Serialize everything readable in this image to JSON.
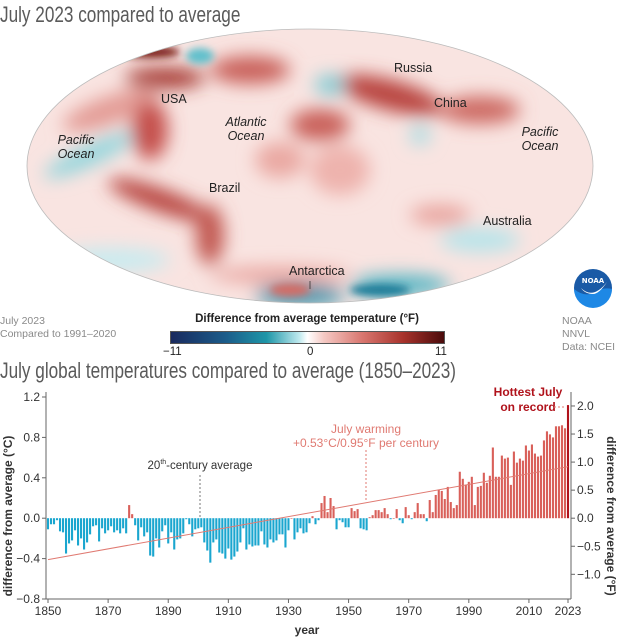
{
  "map": {
    "title": "July 2023 compared to average",
    "labels": {
      "usa": "USA",
      "russia": "Russia",
      "china": "China",
      "atlantic": "Atlantic Ocean",
      "pacific_left": "Pacific Ocean",
      "pacific_right": "Pacific Ocean",
      "brazil": "Brazil",
      "australia": "Australia",
      "antarctica": "Antarctica"
    },
    "note_line1": "July 2023",
    "note_line2": "Compared to 1991–2020",
    "credit_line1": "NOAA NNVL",
    "credit_line2": "Data: NCEI",
    "logo_text": "NOAA",
    "colorbar": {
      "title": "Difference from average temperature (°F)",
      "min": "−11",
      "mid": "0",
      "max": "11",
      "colors": [
        "#1a2a5e",
        "#1e96a8",
        "#ffffff",
        "#d97770",
        "#4a0b0b"
      ]
    }
  },
  "chart_data": {
    "type": "bar",
    "title": "July global temperatures compared to average (1850–2023)",
    "xlabel": "year",
    "ylabel": "difference from average (°C)",
    "ylabel_right": "difference from average (°F)",
    "first_year": 1850,
    "last_year": 2023,
    "xticks": [
      "1850",
      "1870",
      "1890",
      "1910",
      "1930",
      "1950",
      "1970",
      "1990",
      "2010",
      "2023"
    ],
    "yticks": [
      "1.2",
      "0.8",
      "0.4",
      "0.0",
      "−0.4",
      "−0.8"
    ],
    "yticks_right": [
      "2.0",
      "1.5",
      "1.0",
      "0.5",
      "0.0",
      "−0.5",
      "−1.0"
    ],
    "ylim": [
      -0.8,
      1.2
    ],
    "colors": {
      "positive": "#d9605a",
      "negative": "#1aa6cf",
      "record": "#b0121b",
      "trend": "#e07a72"
    },
    "values": [
      -0.11,
      -0.06,
      -0.06,
      -0.02,
      -0.13,
      -0.14,
      -0.35,
      -0.25,
      -0.22,
      -0.12,
      -0.27,
      -0.2,
      -0.31,
      -0.24,
      -0.16,
      -0.08,
      -0.07,
      -0.23,
      -0.1,
      -0.15,
      -0.12,
      -0.08,
      -0.14,
      -0.12,
      -0.15,
      -0.1,
      -0.15,
      0.13,
      0.04,
      -0.07,
      -0.22,
      -0.09,
      -0.18,
      -0.14,
      -0.37,
      -0.38,
      -0.2,
      -0.29,
      -0.13,
      -0.07,
      -0.25,
      -0.14,
      -0.31,
      -0.21,
      -0.2,
      -0.15,
      -0.01,
      -0.06,
      -0.18,
      -0.11,
      -0.1,
      -0.09,
      -0.24,
      -0.32,
      -0.44,
      -0.24,
      -0.21,
      -0.34,
      -0.35,
      -0.4,
      -0.3,
      -0.41,
      -0.38,
      -0.33,
      -0.24,
      -0.1,
      -0.31,
      -0.26,
      -0.28,
      -0.27,
      -0.27,
      -0.13,
      -0.26,
      -0.29,
      -0.21,
      -0.24,
      -0.22,
      -0.16,
      -0.16,
      -0.29,
      -0.12,
      0.0,
      -0.21,
      -0.14,
      -0.1,
      -0.15,
      -0.14,
      -0.05,
      0.02,
      -0.06,
      -0.02,
      0.15,
      0.22,
      0.06,
      0.2,
      0.12,
      -0.11,
      -0.02,
      -0.04,
      -0.09,
      -0.09,
      0.1,
      0.07,
      0.09,
      -0.1,
      -0.11,
      -0.12,
      0.01,
      0.03,
      0.08,
      0.08,
      0.06,
      0.1,
      0.04,
      -0.01,
      0.0,
      0.09,
      -0.02,
      -0.05,
      0.11,
      0.03,
      -0.01,
      0.06,
      0.15,
      0.04,
      0.04,
      -0.03,
      0.18,
      0.06,
      0.23,
      0.28,
      0.27,
      0.19,
      0.31,
      0.16,
      0.1,
      0.13,
      0.46,
      0.39,
      0.33,
      0.36,
      0.41,
      0.13,
      0.31,
      0.32,
      0.45,
      0.35,
      0.42,
      0.7,
      0.41,
      0.41,
      0.62,
      0.59,
      0.6,
      0.33,
      0.66,
      0.55,
      0.59,
      0.57,
      0.72,
      0.67,
      0.73,
      0.64,
      0.61,
      0.62,
      0.77,
      0.86,
      0.83,
      0.8,
      0.91,
      0.91,
      0.92,
      0.89,
      1.12
    ],
    "trend": {
      "start": -0.41,
      "end": 0.51,
      "label_line1": "July warming",
      "label_line2": "+0.53°C/0.95°F per century"
    },
    "annotations": {
      "century_avg_prefix": "20",
      "century_avg_sup": "th",
      "century_avg_suffix": "-century average",
      "record_line1": "Hottest July",
      "record_line2": "on record"
    }
  }
}
